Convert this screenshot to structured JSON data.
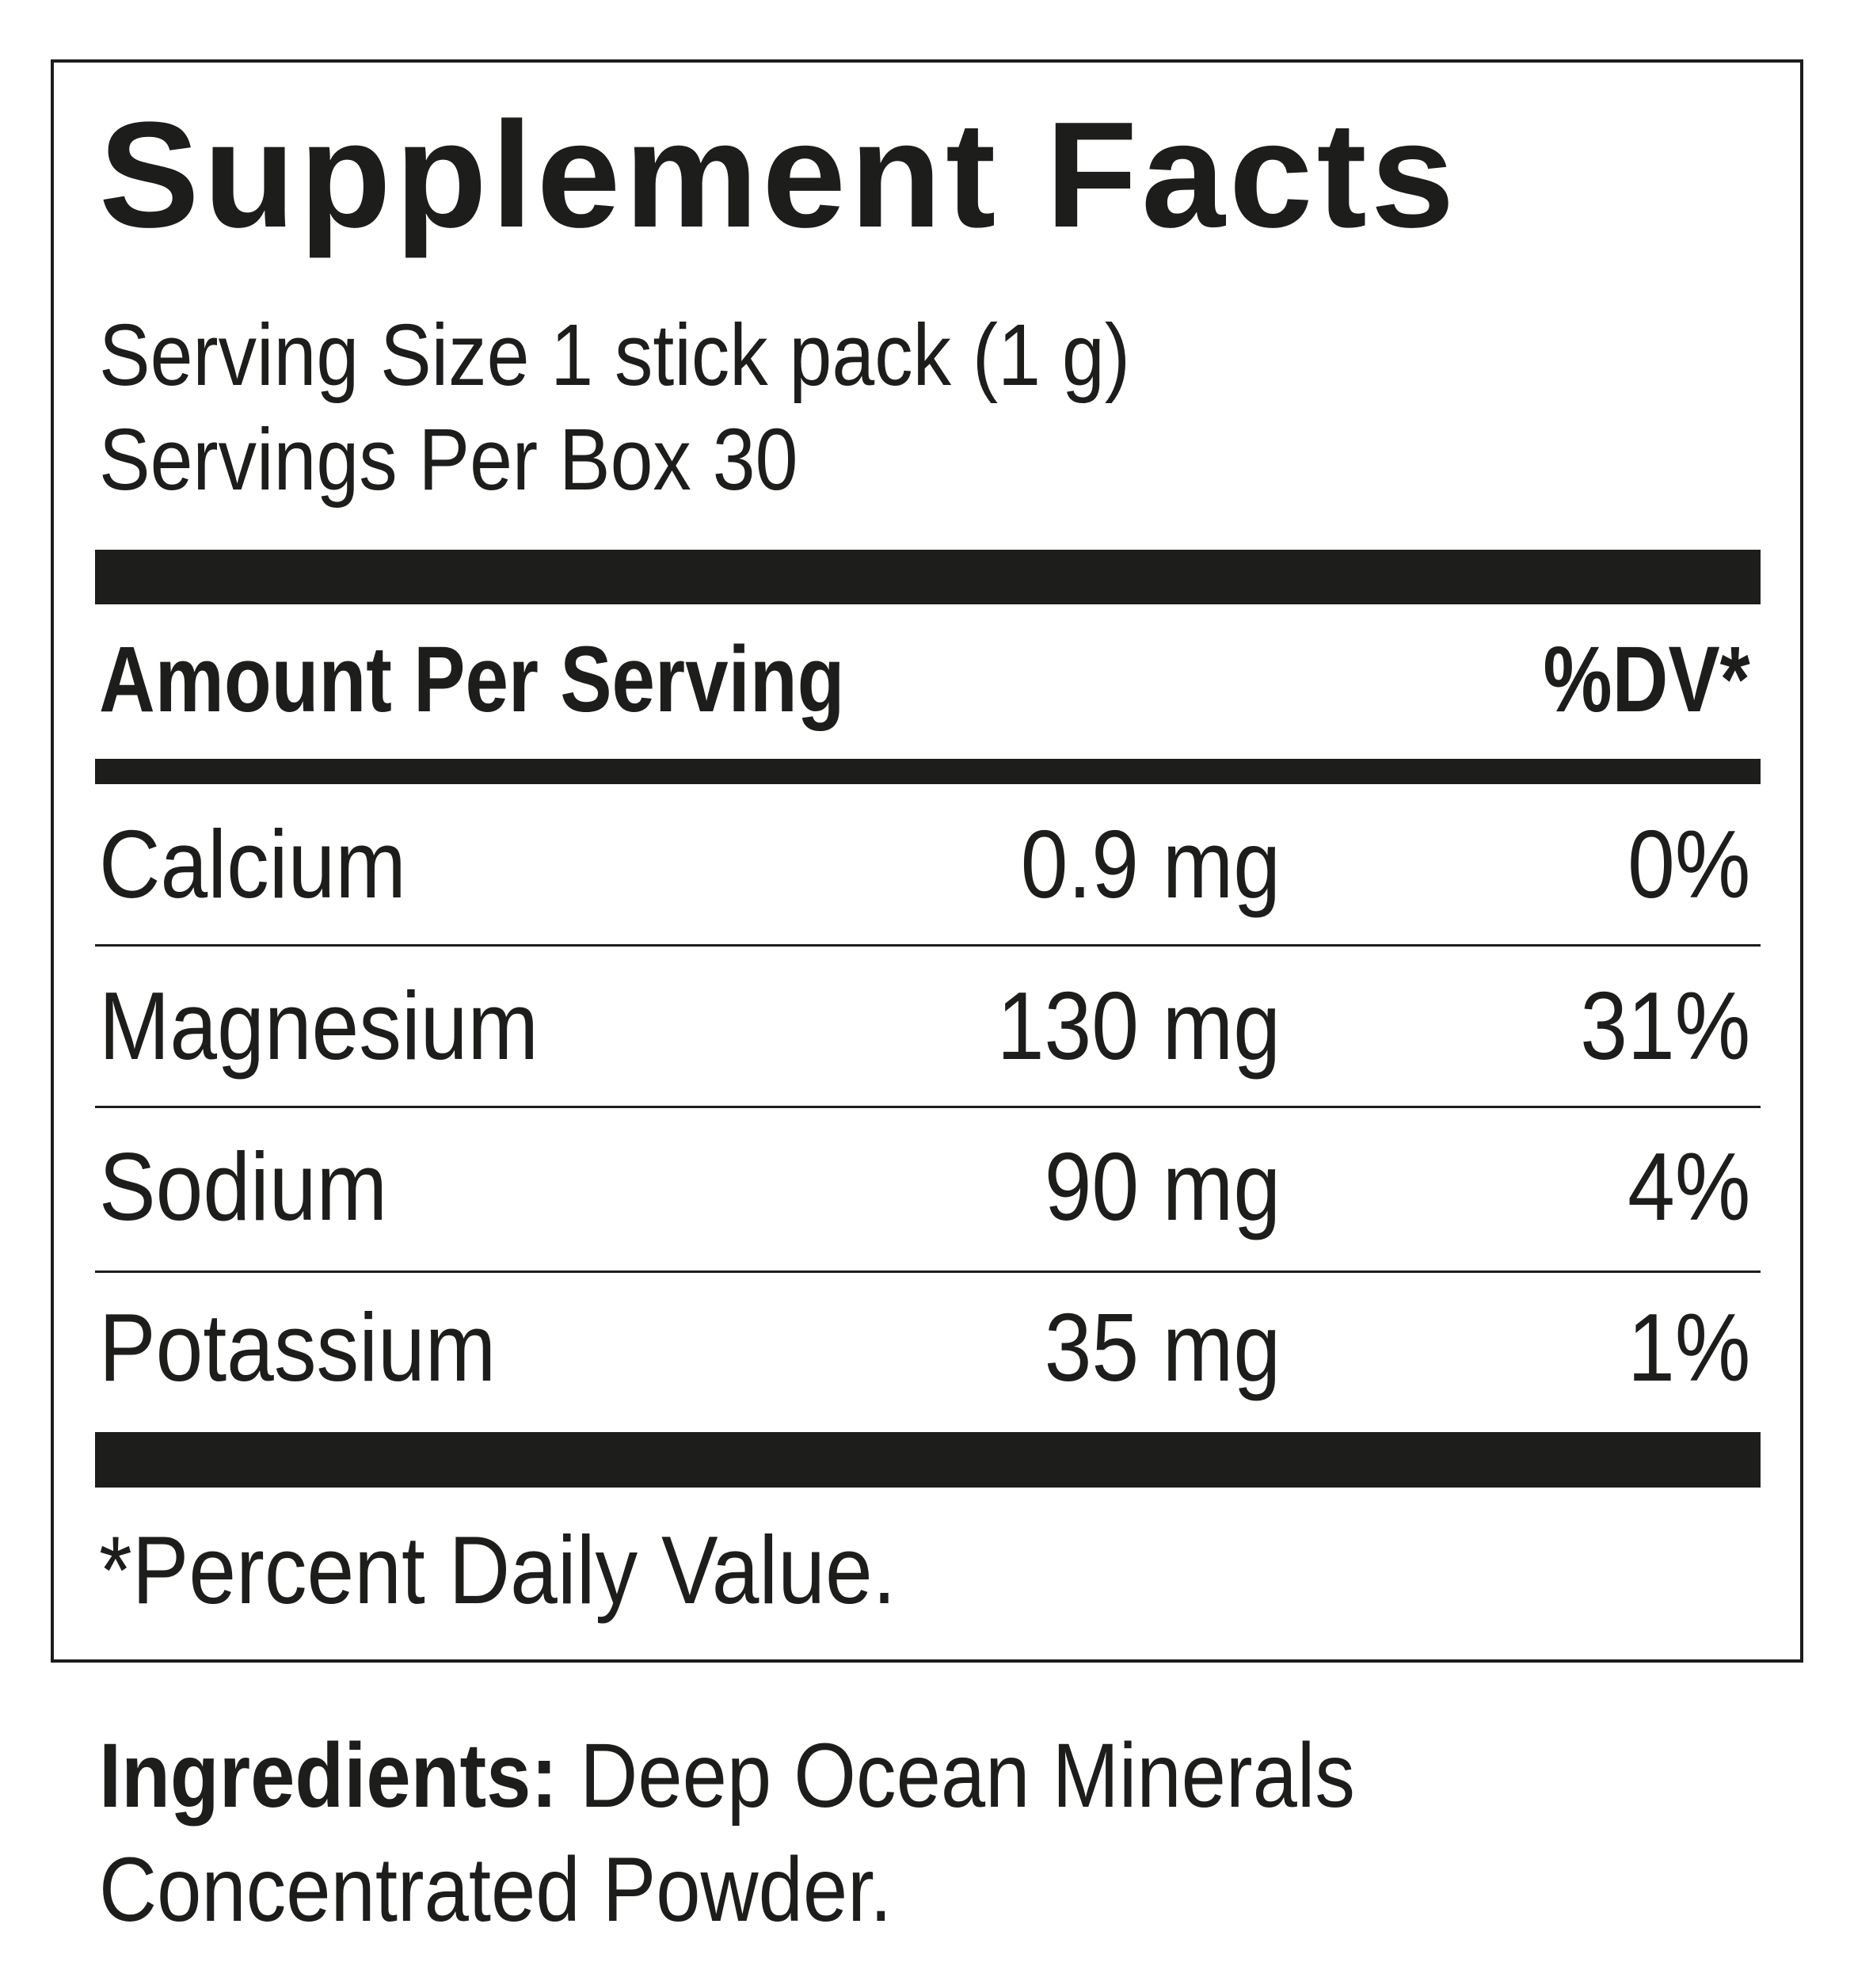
{
  "label": {
    "title": "Supplement Facts",
    "serving_size": "Serving Size 1 stick pack (1 g)",
    "servings_per_container": "Servings Per Box 30",
    "header_amount": "Amount Per Serving",
    "header_dv": "%DV*",
    "nutrients": [
      {
        "name": "Calcium",
        "amount": "0.9 mg",
        "dv": "0%"
      },
      {
        "name": "Magnesium",
        "amount": "130 mg",
        "dv": "31%"
      },
      {
        "name": "Sodium",
        "amount": "90 mg",
        "dv": "4%"
      },
      {
        "name": "Potassium",
        "amount": "35 mg",
        "dv": "1%"
      }
    ],
    "footnote": "*Percent Daily Value."
  },
  "ingredients": {
    "label": "Ingredients:",
    "line1": "Deep Ocean Minerals",
    "line2": "Concentrated Powder."
  },
  "colors": {
    "ink": "#1d1d1b",
    "background": "#ffffff"
  }
}
